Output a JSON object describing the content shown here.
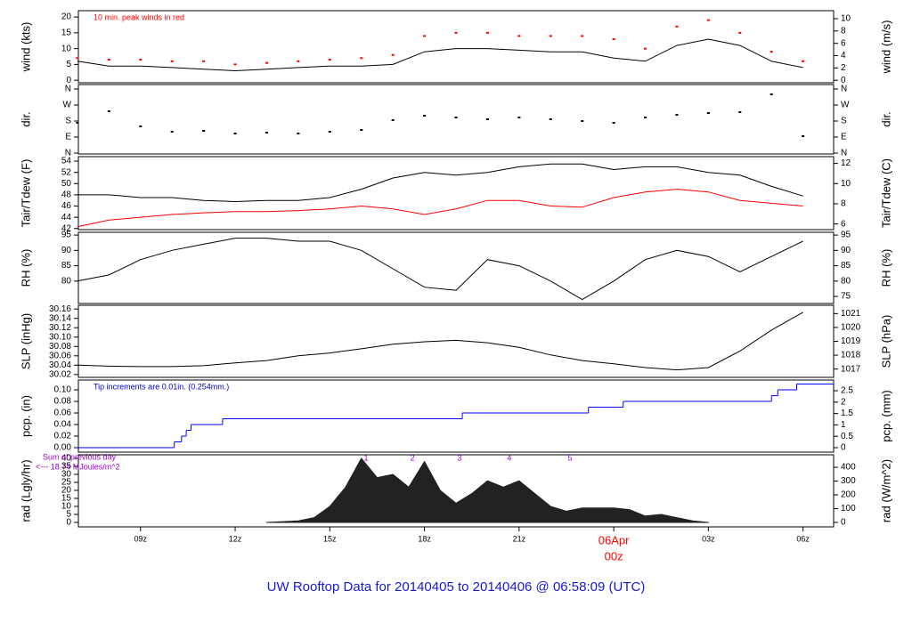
{
  "title": "UW Rooftop Data for 20140405  to  20140406 @ 06:58:09  (UTC)",
  "date_label": {
    "value": 24,
    "label": "06Apr"
  },
  "chart_data": [
    {
      "type": "line",
      "ylabel": "wind (kts)",
      "y2label": "wind (m/s)",
      "note": "10 min. peak winds in red",
      "note_color": "#ff0000",
      "x": [
        7,
        8,
        9,
        10,
        11,
        12,
        13,
        14,
        15,
        16,
        17,
        18,
        19,
        20,
        21,
        22,
        23,
        24,
        25,
        26,
        27,
        28,
        29,
        30
      ],
      "series": [
        {
          "color": "#000000",
          "style": "line",
          "values": [
            6,
            4.5,
            4.5,
            4,
            3.5,
            3,
            3.5,
            4,
            4.5,
            4.5,
            5,
            9,
            10,
            10,
            9.5,
            9,
            9,
            7,
            6,
            11,
            13,
            11,
            6,
            4
          ]
        },
        {
          "color": "#ff0000",
          "style": "points",
          "values": [
            7,
            6.5,
            6.5,
            6,
            6,
            5,
            5.5,
            6,
            6.5,
            7,
            8,
            14,
            15,
            15,
            14,
            14,
            14,
            13,
            10,
            17,
            19,
            15,
            9,
            6
          ]
        }
      ],
      "ylim": [
        -0.8,
        22
      ],
      "yticks": [
        0,
        5,
        10,
        15,
        20
      ],
      "y2lim": [
        -0.41,
        11.3
      ],
      "y2ticks": [
        0,
        2,
        4,
        6,
        8,
        10
      ]
    },
    {
      "type": "scatter",
      "ylabel": "dir.",
      "y2label": "dir.",
      "x": [
        7,
        8,
        9,
        10,
        11,
        12,
        13,
        14,
        15,
        16,
        17,
        18,
        19,
        20,
        21,
        22,
        23,
        24,
        25,
        26,
        27,
        28,
        29,
        30
      ],
      "series": [
        {
          "color": "#000000",
          "values": [
            170,
            235,
            150,
            120,
            125,
            110,
            115,
            110,
            120,
            130,
            185,
            210,
            200,
            190,
            200,
            190,
            180,
            170,
            200,
            215,
            225,
            230,
            330,
            95
          ]
        }
      ],
      "ylim": [
        -5,
        385
      ],
      "yticks": [
        {
          "value": 0,
          "label": "N"
        },
        {
          "value": 90,
          "label": "E"
        },
        {
          "value": 180,
          "label": "S"
        },
        {
          "value": 270,
          "label": "W"
        },
        {
          "value": 360,
          "label": "N"
        }
      ],
      "y2lim": [
        -5,
        385
      ],
      "y2ticks": [
        {
          "value": 0,
          "label": "N"
        },
        {
          "value": 90,
          "label": "E"
        },
        {
          "value": 180,
          "label": "S"
        },
        {
          "value": 270,
          "label": "W"
        },
        {
          "value": 360,
          "label": "N"
        }
      ]
    },
    {
      "type": "line",
      "ylabel": "Tair/Tdew (F)",
      "y2label": "Tair/Tdew (C)",
      "x": [
        7,
        8,
        9,
        10,
        11,
        12,
        13,
        14,
        15,
        16,
        17,
        18,
        19,
        20,
        21,
        22,
        23,
        24,
        25,
        26,
        27,
        28,
        29,
        30
      ],
      "series": [
        {
          "color": "#000000",
          "values": [
            48,
            48,
            47.5,
            47.5,
            47,
            46.8,
            47,
            47,
            47.5,
            49,
            51,
            52,
            51.5,
            52,
            53,
            53.5,
            53.5,
            52.5,
            53,
            53,
            52,
            51.5,
            49.5,
            47.8
          ]
        },
        {
          "color": "#ff0000",
          "values": [
            42.3,
            43.5,
            44,
            44.5,
            44.8,
            45,
            45,
            45.2,
            45.5,
            46,
            45.5,
            44.5,
            45.5,
            47,
            47,
            46,
            45.8,
            47.5,
            48.5,
            49,
            48.5,
            47,
            46.5,
            46
          ]
        }
      ],
      "ylim": [
        41.8,
        54.8
      ],
      "yticks": [
        42,
        44,
        46,
        48,
        50,
        52,
        54
      ],
      "y2lim": [
        5.44,
        12.67
      ],
      "y2ticks": [
        6,
        8,
        10,
        12
      ]
    },
    {
      "type": "line",
      "ylabel": "RH (%)",
      "y2label": "RH (%)",
      "x": [
        7,
        8,
        9,
        10,
        11,
        12,
        13,
        14,
        15,
        16,
        17,
        18,
        19,
        20,
        21,
        22,
        23,
        24,
        25,
        26,
        27,
        28,
        29,
        30
      ],
      "series": [
        {
          "color": "#000000",
          "values": [
            80,
            82,
            87,
            90,
            92,
            94,
            94,
            93,
            93,
            90,
            84,
            78,
            77,
            87,
            85,
            80,
            74,
            80,
            87,
            90,
            88,
            83,
            88,
            93
          ]
        }
      ],
      "ylim": [
        72.7,
        95.9
      ],
      "yticks": [
        80,
        85,
        90,
        95
      ],
      "y2lim": [
        72.7,
        95.9
      ],
      "y2ticks": [
        75,
        80,
        85,
        90,
        95
      ]
    },
    {
      "type": "line",
      "ylabel": "SLP (inHg)",
      "y2label": "SLP (hPa)",
      "x": [
        7,
        8,
        9,
        10,
        11,
        12,
        13,
        14,
        15,
        16,
        17,
        18,
        19,
        20,
        21,
        22,
        23,
        24,
        25,
        26,
        27,
        28,
        29,
        30
      ],
      "series": [
        {
          "color": "#000000",
          "values": [
            30.04,
            30.038,
            30.037,
            30.037,
            30.039,
            30.045,
            30.05,
            30.06,
            30.066,
            30.075,
            30.085,
            30.09,
            30.093,
            30.088,
            30.078,
            30.062,
            30.05,
            30.043,
            30.035,
            30.03,
            30.035,
            30.07,
            30.115,
            30.153
          ]
        }
      ],
      "ylim": [
        30.014,
        30.168
      ],
      "yticks": [
        30.02,
        30.04,
        30.06,
        30.08,
        {
          "value": 30.1,
          "label": "30.10"
        },
        30.12,
        30.14,
        30.16
      ],
      "y2lim": [
        1016.4,
        1021.6
      ],
      "y2ticks": [
        1017,
        1018,
        1019,
        1020,
        1021
      ]
    },
    {
      "type": "step",
      "ylabel": "pcp. (in)",
      "y2label": "pcp. (mm)",
      "note": "Tip increments are 0.01in. (0.254mm.)",
      "note_color": "#0000cc",
      "x": [
        7,
        10.07,
        10.3,
        10.45,
        10.6,
        11.6,
        19.2,
        23.2,
        24.3,
        29.0,
        29.2,
        29.8,
        30.97
      ],
      "series": [
        {
          "color": "#0000ff",
          "values": [
            0,
            0.01,
            0.02,
            0.03,
            0.04,
            0.05,
            0.06,
            0.07,
            0.08,
            0.09,
            0.1,
            0.11,
            0.11
          ]
        }
      ],
      "ylim": [
        -0.0077,
        0.117
      ],
      "yticks": [
        {
          "value": 0,
          "label": "0.00"
        },
        0.02,
        0.04,
        0.06,
        0.08,
        {
          "value": 0.1,
          "label": "0.10"
        }
      ],
      "y2lim": [
        -0.196,
        2.97
      ],
      "y2ticks": [
        0,
        0.5,
        1,
        1.5,
        2,
        2.5
      ]
    },
    {
      "type": "area",
      "ylabel": "rad (Lgly/hr)",
      "y2label": "rad (W/m^2)",
      "sum_label": "Sum of previous day",
      "sum_value_label": "<--- 18.74 MJoules/m^2",
      "note_color": "#9900cc",
      "hour_marks_x": [
        16.15,
        17.62,
        19.11,
        20.69,
        22.61
      ],
      "hour_marks_labels": [
        "1",
        "2",
        "3",
        "4",
        "5"
      ],
      "x": [
        13,
        13.5,
        14,
        14.5,
        15,
        15.5,
        16,
        16.5,
        17,
        17.5,
        18,
        18.5,
        19,
        19.5,
        20,
        20.5,
        21,
        21.5,
        22,
        22.5,
        23,
        23.5,
        24,
        24.5,
        25,
        25.5,
        26,
        26.5,
        27
      ],
      "series": [
        {
          "color": "#222222",
          "values": [
            0,
            0.5,
            1,
            3,
            10,
            22,
            40,
            28,
            30,
            22,
            38,
            20,
            12,
            18,
            26,
            22,
            26,
            18,
            10,
            7,
            9,
            9,
            9,
            8,
            4,
            5,
            3,
            1,
            0
          ]
        }
      ],
      "ylim": [
        -2.8,
        42.2
      ],
      "yticks": [
        0,
        5,
        10,
        15,
        20,
        25,
        30,
        35,
        40
      ],
      "y2lim": [
        -32.6,
        491
      ],
      "y2ticks": [
        0,
        100,
        200,
        300,
        400
      ],
      "xlim": [
        7.03,
        30.97
      ],
      "xticks": [
        {
          "value": 9,
          "label": "09z"
        },
        {
          "value": 12,
          "label": "12z"
        },
        {
          "value": 15,
          "label": "15z"
        },
        {
          "value": 18,
          "label": "18z"
        },
        {
          "value": 21,
          "label": "21z"
        },
        {
          "value": 24,
          "label": "00z"
        },
        {
          "value": 27,
          "label": "03z"
        },
        {
          "value": 30,
          "label": "06z"
        }
      ]
    }
  ]
}
